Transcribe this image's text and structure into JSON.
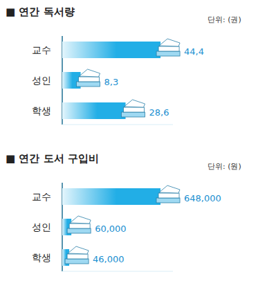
{
  "chart_data": [
    {
      "type": "bar",
      "title": "■ 연간 독서량",
      "subtitle": "단위: (권)",
      "categories": [
        "교수",
        "성인",
        "학생"
      ],
      "values": [
        44.4,
        8.3,
        28.6
      ],
      "value_labels": [
        "44,4",
        "8,3",
        "28,6"
      ],
      "orientation": "horizontal",
      "data_labels": true,
      "tick_labels": "y",
      "color": "#22aee6",
      "xlim": [
        0,
        50
      ]
    },
    {
      "type": "bar",
      "title": "■ 연간 도서 구입비",
      "subtitle": "단위: (원)",
      "categories": [
        "교수",
        "성인",
        "학생"
      ],
      "values": [
        648000,
        60000,
        46000
      ],
      "value_labels": [
        "648,000",
        "60,000",
        "46,000"
      ],
      "orientation": "horizontal",
      "data_labels": true,
      "tick_labels": "y",
      "color": "#22aee6",
      "xlim": [
        0,
        730000
      ]
    }
  ]
}
